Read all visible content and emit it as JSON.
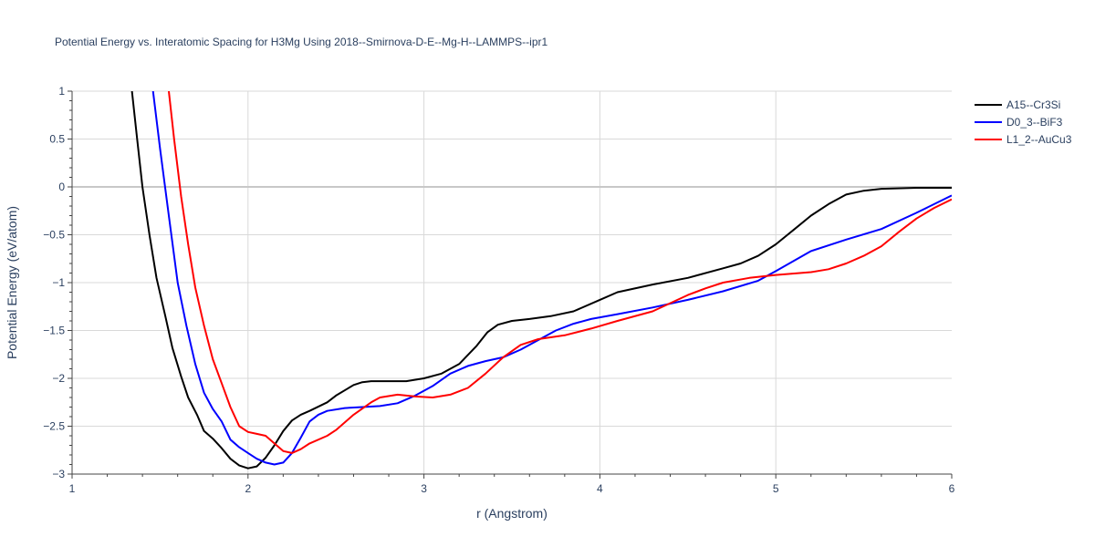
{
  "chart_data": {
    "type": "line",
    "title": "Potential Energy vs. Interatomic Spacing for H3Mg Using 2018--Smirnova-D-E--Mg-H--LAMMPS--ipr1",
    "xlabel": "r (Angstrom)",
    "ylabel": "Potential Energy (eV/atom)",
    "xlim": [
      1,
      6
    ],
    "ylim": [
      -3,
      1
    ],
    "x_ticks": [
      1,
      2,
      3,
      4,
      5,
      6
    ],
    "x_tick_labels": [
      "1",
      "2",
      "3",
      "4",
      "5",
      "6"
    ],
    "y_ticks": [
      -3,
      -2.5,
      -2,
      -1.5,
      -1,
      -0.5,
      0,
      0.5,
      1
    ],
    "y_tick_labels": [
      "−3",
      "−2.5",
      "−2",
      "−1.5",
      "−1",
      "−0.5",
      "0",
      "0.5",
      "1"
    ],
    "grid": true,
    "legend_position": "top-right",
    "series": [
      {
        "name": "A15--Cr3Si",
        "color": "#000000",
        "points": [
          [
            1.34,
            1.0
          ],
          [
            1.37,
            0.5
          ],
          [
            1.4,
            0.0
          ],
          [
            1.44,
            -0.5
          ],
          [
            1.48,
            -0.95
          ],
          [
            1.53,
            -1.35
          ],
          [
            1.57,
            -1.68
          ],
          [
            1.62,
            -1.98
          ],
          [
            1.66,
            -2.2
          ],
          [
            1.71,
            -2.38
          ],
          [
            1.75,
            -2.55
          ],
          [
            1.8,
            -2.63
          ],
          [
            1.85,
            -2.73
          ],
          [
            1.9,
            -2.84
          ],
          [
            1.95,
            -2.91
          ],
          [
            2.0,
            -2.94
          ],
          [
            2.05,
            -2.92
          ],
          [
            2.1,
            -2.83
          ],
          [
            2.15,
            -2.7
          ],
          [
            2.2,
            -2.55
          ],
          [
            2.25,
            -2.44
          ],
          [
            2.3,
            -2.38
          ],
          [
            2.35,
            -2.34
          ],
          [
            2.45,
            -2.25
          ],
          [
            2.5,
            -2.18
          ],
          [
            2.6,
            -2.07
          ],
          [
            2.65,
            -2.04
          ],
          [
            2.7,
            -2.03
          ],
          [
            2.8,
            -2.03
          ],
          [
            2.9,
            -2.03
          ],
          [
            3.0,
            -2.0
          ],
          [
            3.1,
            -1.95
          ],
          [
            3.2,
            -1.85
          ],
          [
            3.3,
            -1.66
          ],
          [
            3.36,
            -1.52
          ],
          [
            3.42,
            -1.44
          ],
          [
            3.5,
            -1.4
          ],
          [
            3.6,
            -1.38
          ],
          [
            3.72,
            -1.35
          ],
          [
            3.85,
            -1.3
          ],
          [
            4.0,
            -1.18
          ],
          [
            4.1,
            -1.1
          ],
          [
            4.3,
            -1.02
          ],
          [
            4.5,
            -0.95
          ],
          [
            4.7,
            -0.85
          ],
          [
            4.8,
            -0.8
          ],
          [
            4.9,
            -0.72
          ],
          [
            5.0,
            -0.6
          ],
          [
            5.1,
            -0.45
          ],
          [
            5.2,
            -0.3
          ],
          [
            5.3,
            -0.18
          ],
          [
            5.4,
            -0.08
          ],
          [
            5.5,
            -0.04
          ],
          [
            5.6,
            -0.02
          ],
          [
            5.8,
            -0.01
          ],
          [
            6.0,
            -0.01
          ]
        ]
      },
      {
        "name": "D0_3--BiF3",
        "color": "#0000ff",
        "points": [
          [
            1.46,
            1.0
          ],
          [
            1.5,
            0.4
          ],
          [
            1.55,
            -0.3
          ],
          [
            1.6,
            -1.0
          ],
          [
            1.65,
            -1.45
          ],
          [
            1.7,
            -1.85
          ],
          [
            1.75,
            -2.15
          ],
          [
            1.8,
            -2.32
          ],
          [
            1.85,
            -2.45
          ],
          [
            1.9,
            -2.64
          ],
          [
            1.95,
            -2.72
          ],
          [
            2.0,
            -2.78
          ],
          [
            2.05,
            -2.84
          ],
          [
            2.1,
            -2.88
          ],
          [
            2.15,
            -2.9
          ],
          [
            2.2,
            -2.88
          ],
          [
            2.25,
            -2.78
          ],
          [
            2.3,
            -2.62
          ],
          [
            2.35,
            -2.45
          ],
          [
            2.4,
            -2.38
          ],
          [
            2.45,
            -2.34
          ],
          [
            2.55,
            -2.31
          ],
          [
            2.65,
            -2.3
          ],
          [
            2.75,
            -2.29
          ],
          [
            2.85,
            -2.26
          ],
          [
            2.95,
            -2.18
          ],
          [
            3.05,
            -2.08
          ],
          [
            3.15,
            -1.95
          ],
          [
            3.25,
            -1.87
          ],
          [
            3.35,
            -1.82
          ],
          [
            3.45,
            -1.78
          ],
          [
            3.55,
            -1.7
          ],
          [
            3.65,
            -1.6
          ],
          [
            3.75,
            -1.5
          ],
          [
            3.85,
            -1.43
          ],
          [
            3.95,
            -1.38
          ],
          [
            4.1,
            -1.33
          ],
          [
            4.3,
            -1.26
          ],
          [
            4.5,
            -1.18
          ],
          [
            4.7,
            -1.09
          ],
          [
            4.9,
            -0.98
          ],
          [
            5.0,
            -0.88
          ],
          [
            5.2,
            -0.67
          ],
          [
            5.4,
            -0.55
          ],
          [
            5.6,
            -0.44
          ],
          [
            5.8,
            -0.27
          ],
          [
            6.0,
            -0.09
          ]
        ]
      },
      {
        "name": "L1_2--AuCu3",
        "color": "#ff0000",
        "points": [
          [
            1.55,
            1.0
          ],
          [
            1.58,
            0.5
          ],
          [
            1.62,
            -0.1
          ],
          [
            1.66,
            -0.6
          ],
          [
            1.7,
            -1.05
          ],
          [
            1.75,
            -1.45
          ],
          [
            1.8,
            -1.8
          ],
          [
            1.85,
            -2.05
          ],
          [
            1.9,
            -2.3
          ],
          [
            1.95,
            -2.5
          ],
          [
            2.0,
            -2.56
          ],
          [
            2.05,
            -2.58
          ],
          [
            2.1,
            -2.6
          ],
          [
            2.15,
            -2.68
          ],
          [
            2.2,
            -2.76
          ],
          [
            2.25,
            -2.78
          ],
          [
            2.3,
            -2.74
          ],
          [
            2.35,
            -2.68
          ],
          [
            2.45,
            -2.6
          ],
          [
            2.5,
            -2.54
          ],
          [
            2.6,
            -2.38
          ],
          [
            2.7,
            -2.25
          ],
          [
            2.75,
            -2.2
          ],
          [
            2.85,
            -2.17
          ],
          [
            2.95,
            -2.19
          ],
          [
            3.05,
            -2.2
          ],
          [
            3.15,
            -2.17
          ],
          [
            3.25,
            -2.1
          ],
          [
            3.35,
            -1.95
          ],
          [
            3.45,
            -1.78
          ],
          [
            3.55,
            -1.65
          ],
          [
            3.65,
            -1.59
          ],
          [
            3.8,
            -1.55
          ],
          [
            3.95,
            -1.48
          ],
          [
            4.1,
            -1.4
          ],
          [
            4.3,
            -1.3
          ],
          [
            4.5,
            -1.13
          ],
          [
            4.6,
            -1.06
          ],
          [
            4.7,
            -1.0
          ],
          [
            4.85,
            -0.95
          ],
          [
            5.0,
            -0.92
          ],
          [
            5.2,
            -0.89
          ],
          [
            5.3,
            -0.86
          ],
          [
            5.4,
            -0.8
          ],
          [
            5.5,
            -0.72
          ],
          [
            5.6,
            -0.62
          ],
          [
            5.7,
            -0.47
          ],
          [
            5.8,
            -0.33
          ],
          [
            5.9,
            -0.22
          ],
          [
            6.0,
            -0.13
          ]
        ]
      }
    ]
  }
}
